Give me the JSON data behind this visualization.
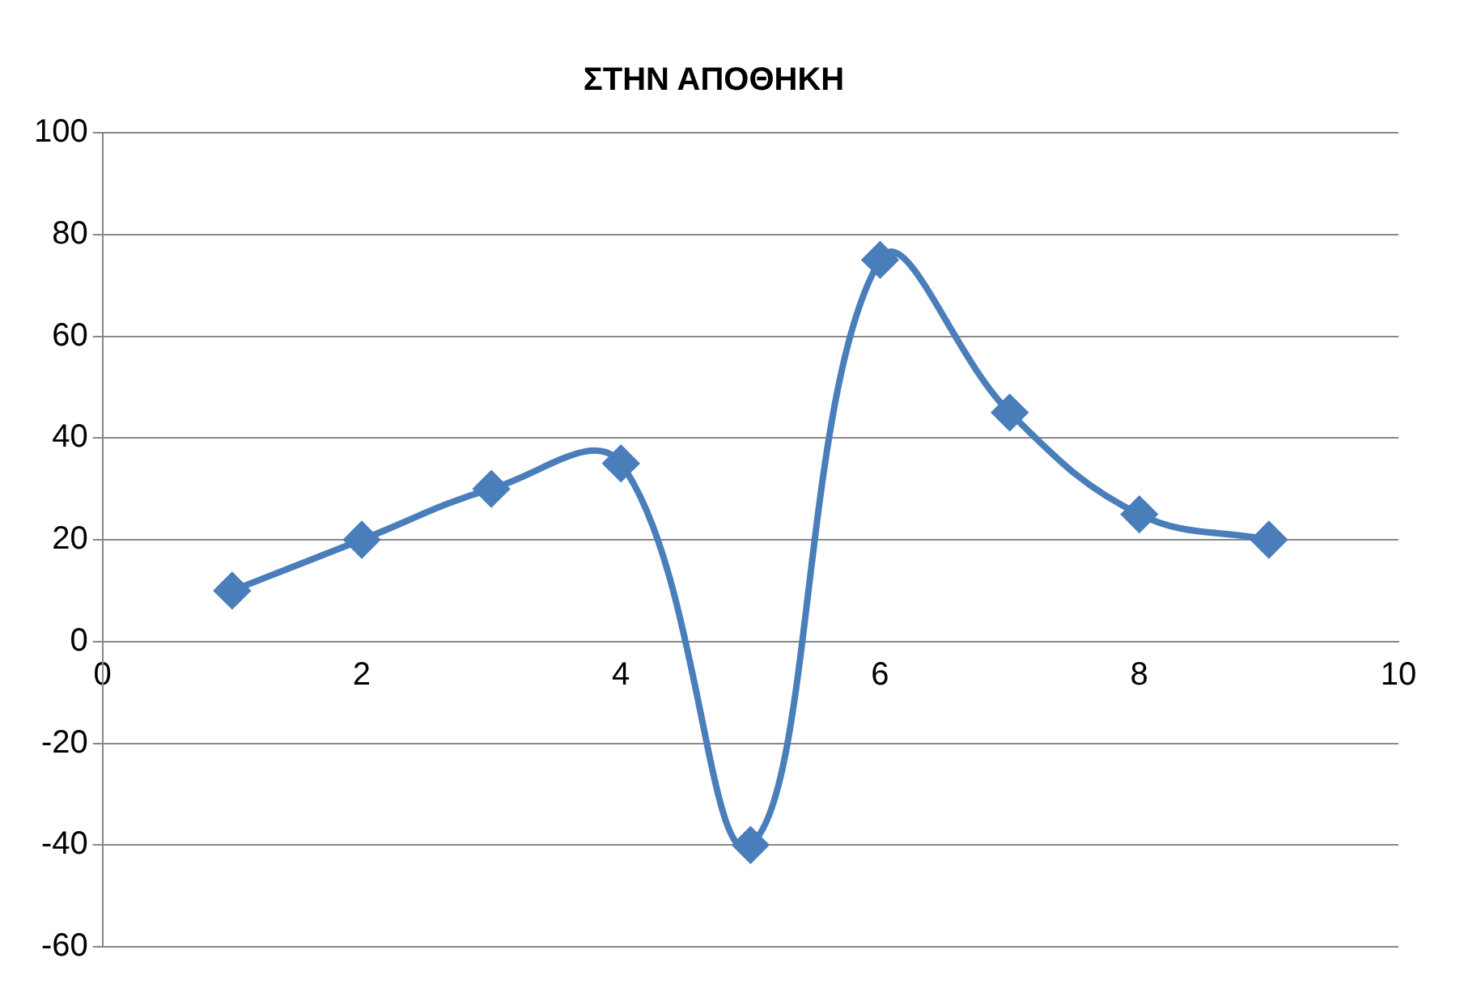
{
  "chart_data": {
    "type": "line",
    "title": "ΣΤΗΝ ΑΠΟΘΗΚΗ",
    "x": [
      1,
      2,
      3,
      4,
      5,
      6,
      7,
      8,
      9
    ],
    "series": [
      {
        "color": "#4a7ebb",
        "values": [
          10,
          20,
          30,
          35,
          -40,
          75,
          45,
          25,
          20
        ]
      }
    ],
    "xlim": [
      0,
      10
    ],
    "xticks": [
      0,
      2,
      4,
      6,
      8,
      10
    ],
    "ylim": [
      -60,
      100
    ],
    "yticks": [
      -60,
      -40,
      -20,
      0,
      20,
      40,
      60,
      80,
      100
    ],
    "grid": "y",
    "legend": false,
    "marker": "diamond",
    "line_style": "solid"
  }
}
